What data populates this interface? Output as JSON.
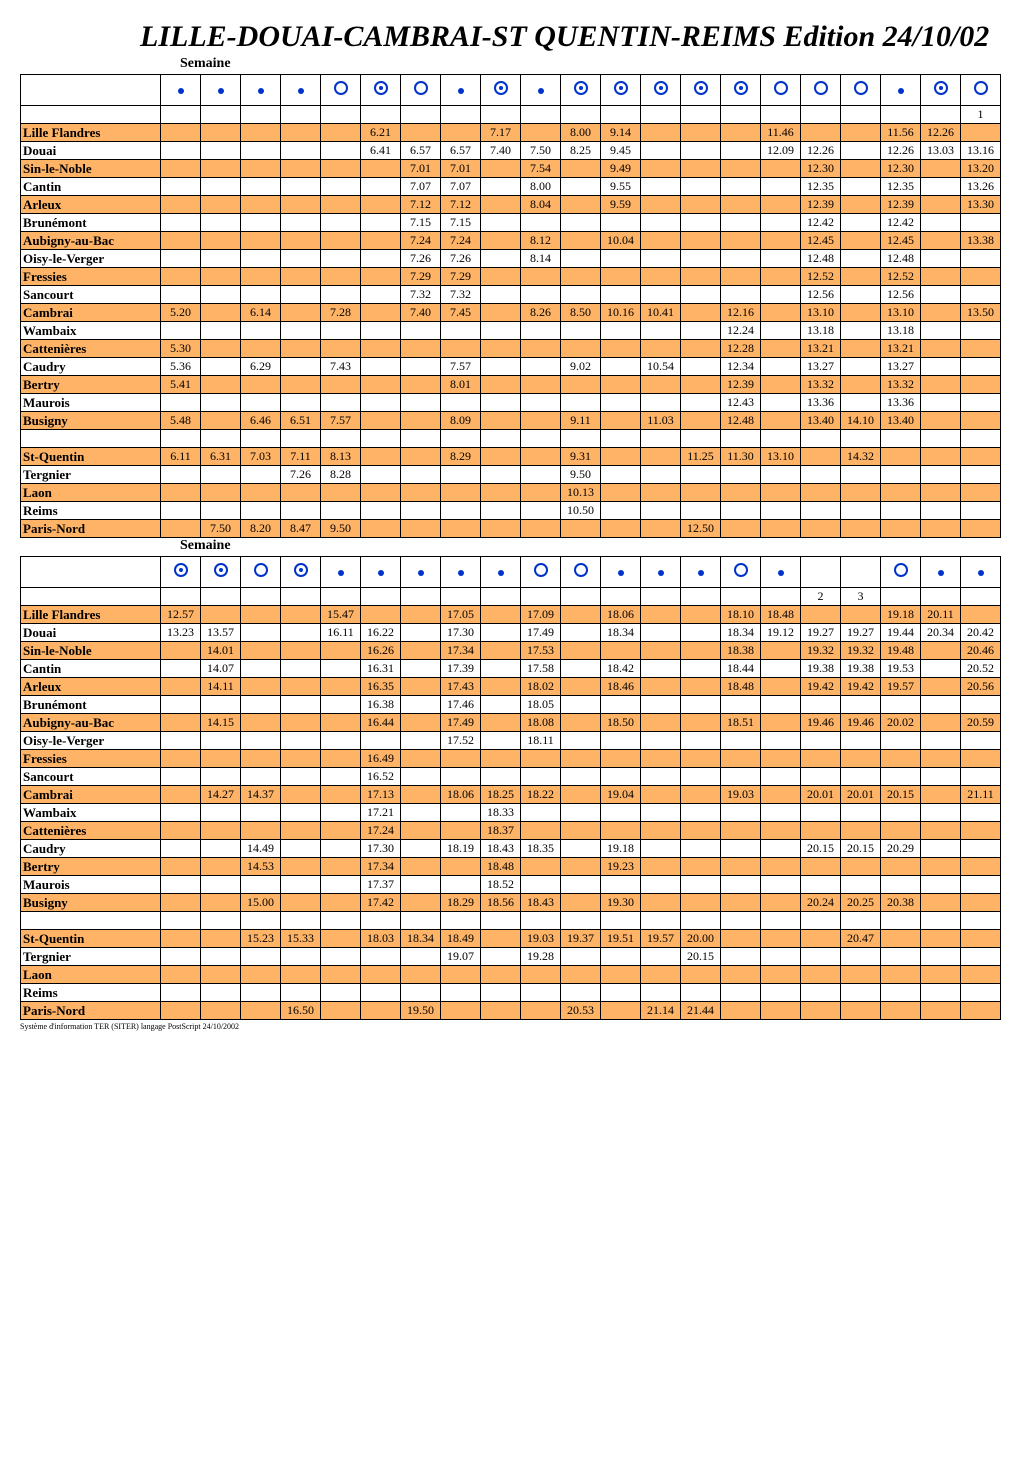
{
  "title": "LILLE-DOUAI-CAMBRAI-ST QUENTIN-REIMS  Edition 24/10/02",
  "section_label": "Semaine",
  "footnote": "Système d'information TER (SITER) langage PostScript 24/10/2002",
  "stations": [
    "Lille Flandres",
    "Douai",
    "Sin-le-Noble",
    "Cantin",
    "Arleux",
    "Brunémont",
    "Aubigny-au-Bac",
    "Oisy-le-Verger",
    "Fressies",
    "Sancourt",
    "Cambrai",
    "Wambaix",
    "Cattenières",
    "Caudry",
    "Bertry",
    "Maurois",
    "Busigny",
    "",
    "St-Quentin",
    "Tergnier",
    "Laon",
    "Reims",
    "Paris-Nord"
  ],
  "icons1": [
    "solid",
    "solid",
    "solid",
    "solid",
    "ring",
    "ringdot",
    "ring",
    "solid",
    "ringdot",
    "solid",
    "ringdot",
    "ringdot",
    "ringdot",
    "ringdot",
    "ringdot",
    "ring",
    "ring",
    "ring",
    "solid",
    "ringdot",
    "ring"
  ],
  "corner1": "1",
  "table1": [
    [
      "",
      "",
      "",
      "",
      "",
      "6.21",
      "",
      "",
      "7.17",
      "",
      "8.00",
      "9.14",
      "",
      "",
      "",
      "11.46",
      "",
      "",
      "11.56",
      "12.26",
      ""
    ],
    [
      "",
      "",
      "",
      "",
      "",
      "6.41",
      "6.57",
      "6.57",
      "7.40",
      "7.50",
      "8.25",
      "9.45",
      "",
      "",
      "",
      "12.09",
      "12.26",
      "",
      "12.26",
      "13.03",
      "13.16"
    ],
    [
      "",
      "",
      "",
      "",
      "",
      "",
      "7.01",
      "7.01",
      "",
      "7.54",
      "",
      "9.49",
      "",
      "",
      "",
      "",
      "12.30",
      "",
      "12.30",
      "",
      "13.20"
    ],
    [
      "",
      "",
      "",
      "",
      "",
      "",
      "7.07",
      "7.07",
      "",
      "8.00",
      "",
      "9.55",
      "",
      "",
      "",
      "",
      "12.35",
      "",
      "12.35",
      "",
      "13.26"
    ],
    [
      "",
      "",
      "",
      "",
      "",
      "",
      "7.12",
      "7.12",
      "",
      "8.04",
      "",
      "9.59",
      "",
      "",
      "",
      "",
      "12.39",
      "",
      "12.39",
      "",
      "13.30"
    ],
    [
      "",
      "",
      "",
      "",
      "",
      "",
      "7.15",
      "7.15",
      "",
      "",
      "",
      "",
      "",
      "",
      "",
      "",
      "12.42",
      "",
      "12.42",
      "",
      ""
    ],
    [
      "",
      "",
      "",
      "",
      "",
      "",
      "7.24",
      "7.24",
      "",
      "8.12",
      "",
      "10.04",
      "",
      "",
      "",
      "",
      "12.45",
      "",
      "12.45",
      "",
      "13.38"
    ],
    [
      "",
      "",
      "",
      "",
      "",
      "",
      "7.26",
      "7.26",
      "",
      "8.14",
      "",
      "",
      "",
      "",
      "",
      "",
      "12.48",
      "",
      "12.48",
      "",
      ""
    ],
    [
      "",
      "",
      "",
      "",
      "",
      "",
      "7.29",
      "7.29",
      "",
      "",
      "",
      "",
      "",
      "",
      "",
      "",
      "12.52",
      "",
      "12.52",
      "",
      ""
    ],
    [
      "",
      "",
      "",
      "",
      "",
      "",
      "7.32",
      "7.32",
      "",
      "",
      "",
      "",
      "",
      "",
      "",
      "",
      "12.56",
      "",
      "12.56",
      "",
      ""
    ],
    [
      "5.20",
      "",
      "6.14",
      "",
      "7.28",
      "",
      "7.40",
      "7.45",
      "",
      "8.26",
      "8.50",
      "10.16",
      "10.41",
      "",
      "12.16",
      "",
      "13.10",
      "",
      "13.10",
      "",
      "13.50"
    ],
    [
      "",
      "",
      "",
      "",
      "",
      "",
      "",
      "",
      "",
      "",
      "",
      "",
      "",
      "",
      "12.24",
      "",
      "13.18",
      "",
      "13.18",
      "",
      ""
    ],
    [
      "5.30",
      "",
      "",
      "",
      "",
      "",
      "",
      "",
      "",
      "",
      "",
      "",
      "",
      "",
      "12.28",
      "",
      "13.21",
      "",
      "13.21",
      "",
      ""
    ],
    [
      "5.36",
      "",
      "6.29",
      "",
      "7.43",
      "",
      "",
      "7.57",
      "",
      "",
      "9.02",
      "",
      "10.54",
      "",
      "12.34",
      "",
      "13.27",
      "",
      "13.27",
      "",
      ""
    ],
    [
      "5.41",
      "",
      "",
      "",
      "",
      "",
      "",
      "8.01",
      "",
      "",
      "",
      "",
      "",
      "",
      "12.39",
      "",
      "13.32",
      "",
      "13.32",
      "",
      ""
    ],
    [
      "",
      "",
      "",
      "",
      "",
      "",
      "",
      "",
      "",
      "",
      "",
      "",
      "",
      "",
      "12.43",
      "",
      "13.36",
      "",
      "13.36",
      "",
      ""
    ],
    [
      "5.48",
      "",
      "6.46",
      "6.51",
      "7.57",
      "",
      "",
      "8.09",
      "",
      "",
      "9.11",
      "",
      "11.03",
      "",
      "12.48",
      "",
      "13.40",
      "14.10",
      "13.40",
      "",
      ""
    ],
    [
      "",
      "",
      "",
      "",
      "",
      "",
      "",
      "",
      "",
      "",
      "",
      "",
      "",
      "",
      "",
      "",
      "",
      "",
      "",
      "",
      ""
    ],
    [
      "6.11",
      "6.31",
      "7.03",
      "7.11",
      "8.13",
      "",
      "",
      "8.29",
      "",
      "",
      "9.31",
      "",
      "",
      "11.25",
      "11.30",
      "13.10",
      "",
      "14.32",
      "",
      "",
      ""
    ],
    [
      "",
      "",
      "",
      "7.26",
      "8.28",
      "",
      "",
      "",
      "",
      "",
      "9.50",
      "",
      "",
      "",
      "",
      "",
      "",
      "",
      "",
      "",
      ""
    ],
    [
      "",
      "",
      "",
      "",
      "",
      "",
      "",
      "",
      "",
      "",
      "10.13",
      "",
      "",
      "",
      "",
      "",
      "",
      "",
      "",
      "",
      ""
    ],
    [
      "",
      "",
      "",
      "",
      "",
      "",
      "",
      "",
      "",
      "",
      "10.50",
      "",
      "",
      "",
      "",
      "",
      "",
      "",
      "",
      "",
      ""
    ],
    [
      "",
      "7.50",
      "8.20",
      "8.47",
      "9.50",
      "",
      "",
      "",
      "",
      "",
      "",
      "",
      "",
      "12.50",
      "",
      "",
      "",
      "",
      "",
      "",
      ""
    ]
  ],
  "icons2": [
    "ringdot",
    "ringdot",
    "ring",
    "ringdot",
    "solid",
    "solid",
    "solid",
    "solid",
    "solid",
    "ring",
    "ring",
    "solid",
    "solid",
    "solid",
    "ring",
    "solid",
    "",
    "",
    "ring",
    "solid",
    "solid"
  ],
  "corner2a": "2",
  "corner2b": "3",
  "table2": [
    [
      "12.57",
      "",
      "",
      "",
      "15.47",
      "",
      "",
      "17.05",
      "",
      "17.09",
      "",
      "18.06",
      "",
      "",
      "18.10",
      "18.48",
      "",
      "",
      "19.18",
      "20.11",
      ""
    ],
    [
      "13.23",
      "13.57",
      "",
      "",
      "16.11",
      "16.22",
      "",
      "17.30",
      "",
      "17.49",
      "",
      "18.34",
      "",
      "",
      "18.34",
      "19.12",
      "19.27",
      "19.27",
      "19.44",
      "20.34",
      "20.42"
    ],
    [
      "",
      "14.01",
      "",
      "",
      "",
      "16.26",
      "",
      "17.34",
      "",
      "17.53",
      "",
      "",
      "",
      "",
      "18.38",
      "",
      "19.32",
      "19.32",
      "19.48",
      "",
      "20.46"
    ],
    [
      "",
      "14.07",
      "",
      "",
      "",
      "16.31",
      "",
      "17.39",
      "",
      "17.58",
      "",
      "18.42",
      "",
      "",
      "18.44",
      "",
      "19.38",
      "19.38",
      "19.53",
      "",
      "20.52"
    ],
    [
      "",
      "14.11",
      "",
      "",
      "",
      "16.35",
      "",
      "17.43",
      "",
      "18.02",
      "",
      "18.46",
      "",
      "",
      "18.48",
      "",
      "19.42",
      "19.42",
      "19.57",
      "",
      "20.56"
    ],
    [
      "",
      "",
      "",
      "",
      "",
      "16.38",
      "",
      "17.46",
      "",
      "18.05",
      "",
      "",
      "",
      "",
      "",
      "",
      "",
      "",
      "",
      "",
      ""
    ],
    [
      "",
      "14.15",
      "",
      "",
      "",
      "16.44",
      "",
      "17.49",
      "",
      "18.08",
      "",
      "18.50",
      "",
      "",
      "18.51",
      "",
      "19.46",
      "19.46",
      "20.02",
      "",
      "20.59"
    ],
    [
      "",
      "",
      "",
      "",
      "",
      "",
      "",
      "17.52",
      "",
      "18.11",
      "",
      "",
      "",
      "",
      "",
      "",
      "",
      "",
      "",
      "",
      ""
    ],
    [
      "",
      "",
      "",
      "",
      "",
      "16.49",
      "",
      "",
      "",
      "",
      "",
      "",
      "",
      "",
      "",
      "",
      "",
      "",
      "",
      "",
      ""
    ],
    [
      "",
      "",
      "",
      "",
      "",
      "16.52",
      "",
      "",
      "",
      "",
      "",
      "",
      "",
      "",
      "",
      "",
      "",
      "",
      "",
      "",
      ""
    ],
    [
      "",
      "14.27",
      "14.37",
      "",
      "",
      "17.13",
      "",
      "18.06",
      "18.25",
      "18.22",
      "",
      "19.04",
      "",
      "",
      "19.03",
      "",
      "20.01",
      "20.01",
      "20.15",
      "",
      "21.11"
    ],
    [
      "",
      "",
      "",
      "",
      "",
      "17.21",
      "",
      "",
      "18.33",
      "",
      "",
      "",
      "",
      "",
      "",
      "",
      "",
      "",
      "",
      "",
      ""
    ],
    [
      "",
      "",
      "",
      "",
      "",
      "17.24",
      "",
      "",
      "18.37",
      "",
      "",
      "",
      "",
      "",
      "",
      "",
      "",
      "",
      "",
      "",
      ""
    ],
    [
      "",
      "",
      "14.49",
      "",
      "",
      "17.30",
      "",
      "18.19",
      "18.43",
      "18.35",
      "",
      "19.18",
      "",
      "",
      "",
      "",
      "20.15",
      "20.15",
      "20.29",
      "",
      ""
    ],
    [
      "",
      "",
      "14.53",
      "",
      "",
      "17.34",
      "",
      "",
      "18.48",
      "",
      "",
      "19.23",
      "",
      "",
      "",
      "",
      "",
      "",
      "",
      "",
      ""
    ],
    [
      "",
      "",
      "",
      "",
      "",
      "17.37",
      "",
      "",
      "18.52",
      "",
      "",
      "",
      "",
      "",
      "",
      "",
      "",
      "",
      "",
      "",
      ""
    ],
    [
      "",
      "",
      "15.00",
      "",
      "",
      "17.42",
      "",
      "18.29",
      "18.56",
      "18.43",
      "",
      "19.30",
      "",
      "",
      "",
      "",
      "20.24",
      "20.25",
      "20.38",
      "",
      ""
    ],
    [
      "",
      "",
      "",
      "",
      "",
      "",
      "",
      "",
      "",
      "",
      "",
      "",
      "",
      "",
      "",
      "",
      "",
      "",
      "",
      "",
      ""
    ],
    [
      "",
      "",
      "15.23",
      "15.33",
      "",
      "18.03",
      "18.34",
      "18.49",
      "",
      "19.03",
      "19.37",
      "19.51",
      "19.57",
      "20.00",
      "",
      "",
      "",
      "20.47",
      "",
      "",
      ""
    ],
    [
      "",
      "",
      "",
      "",
      "",
      "",
      "",
      "19.07",
      "",
      "19.28",
      "",
      "",
      "",
      "20.15",
      "",
      "",
      "",
      "",
      "",
      "",
      ""
    ],
    [
      "",
      "",
      "",
      "",
      "",
      "",
      "",
      "",
      "",
      "",
      "",
      "",
      "",
      "",
      "",
      "",
      "",
      "",
      "",
      "",
      ""
    ],
    [
      "",
      "",
      "",
      "",
      "",
      "",
      "",
      "",
      "",
      "",
      "",
      "",
      "",
      "",
      "",
      "",
      "",
      "",
      "",
      "",
      ""
    ],
    [
      "",
      "",
      "",
      "16.50",
      "",
      "",
      "19.50",
      "",
      "",
      "",
      "20.53",
      "",
      "21.14",
      "21.44",
      "",
      "",
      "",
      "",
      "",
      "",
      ""
    ]
  ]
}
